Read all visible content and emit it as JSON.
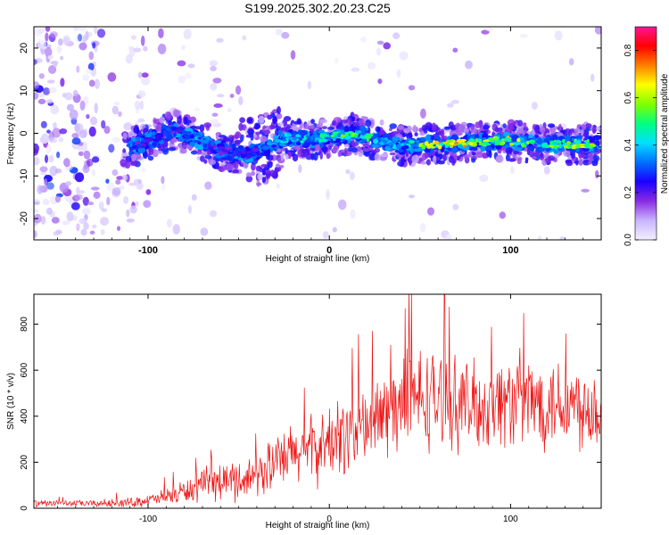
{
  "title": "S199.2025.302.20.23.C25",
  "chart_data": [
    {
      "type": "heatmap",
      "xlabel": "Height of straight line (km)",
      "ylabel": "Frequency (Hz)",
      "xlim": [
        -163,
        150
      ],
      "ylim": [
        -25,
        25
      ],
      "xticks": [
        -100,
        0,
        100
      ],
      "xtick_labels": [
        "-100",
        "0",
        "100"
      ],
      "yticks": [
        -20,
        -10,
        0,
        10,
        20
      ],
      "ytick_labels": [
        "-20",
        "-10",
        "0",
        "10",
        "20"
      ],
      "colorbar": {
        "label": "Normalized spectral amplitude",
        "range": [
          0,
          0.9
        ],
        "ticks": [
          0,
          0.2,
          0.4,
          0.6,
          0.8
        ],
        "tick_labels": [
          "0.0",
          "0.2",
          "0.4",
          "0.6",
          "0.8"
        ],
        "colors": [
          "#f2f0ff",
          "#c9b5ff",
          "#8a2be2",
          "#1a00ff",
          "#0070ff",
          "#00e0ff",
          "#00ff80",
          "#80ff00",
          "#ffff00",
          "#ff8000",
          "#ff0000",
          "#ff1493"
        ]
      },
      "ridge": {
        "x": [
          -110,
          -95,
          -85,
          -75,
          -60,
          -45,
          -35,
          -25,
          -10,
          0,
          15,
          30,
          40,
          55,
          70,
          85,
          100,
          115,
          130,
          148
        ],
        "freq": [
          -3.5,
          -1,
          1,
          -1,
          -4,
          -5,
          -3.5,
          -1,
          -1.5,
          -1,
          0,
          -2,
          -3,
          -2.5,
          -2.5,
          -2,
          -1.8,
          -2.5,
          -2.5,
          -2.5
        ],
        "amplitude": [
          0.3,
          0.35,
          0.3,
          0.4,
          0.3,
          0.3,
          0.35,
          0.45,
          0.5,
          0.55,
          0.6,
          0.5,
          0.4,
          0.7,
          0.8,
          0.75,
          0.7,
          0.65,
          0.6,
          0.8
        ]
      }
    },
    {
      "type": "line",
      "xlabel": "Height of straight line (km)",
      "ylabel": "SNR (10 * v/v)",
      "xlim": [
        -163,
        150
      ],
      "ylim": [
        0,
        930
      ],
      "xticks": [
        -100,
        0,
        100
      ],
      "xtick_labels": [
        "-100",
        "0",
        "100"
      ],
      "yticks": [
        0,
        200,
        400,
        600,
        800
      ],
      "ytick_labels": [
        "0",
        "200",
        "400",
        "600",
        "800"
      ],
      "color": "#ee1111",
      "series": [
        {
          "name": "SNR",
          "x": [
            -163,
            -150,
            -130,
            -110,
            -95,
            -85,
            -75,
            -65,
            -55,
            -45,
            -35,
            -25,
            -15,
            -5,
            5,
            15,
            25,
            35,
            45,
            55,
            65,
            75,
            85,
            95,
            105,
            115,
            125,
            135,
            150
          ],
          "y": [
            20,
            22,
            20,
            25,
            40,
            60,
            85,
            110,
            120,
            130,
            170,
            210,
            250,
            260,
            300,
            340,
            380,
            430,
            470,
            480,
            470,
            450,
            440,
            470,
            470,
            460,
            470,
            450,
            440
          ],
          "amplitude": [
            15,
            12,
            15,
            20,
            30,
            45,
            60,
            75,
            85,
            90,
            110,
            130,
            140,
            150,
            170,
            180,
            190,
            200,
            220,
            220,
            200,
            190,
            190,
            200,
            210,
            200,
            200,
            190,
            190
          ]
        }
      ]
    }
  ]
}
